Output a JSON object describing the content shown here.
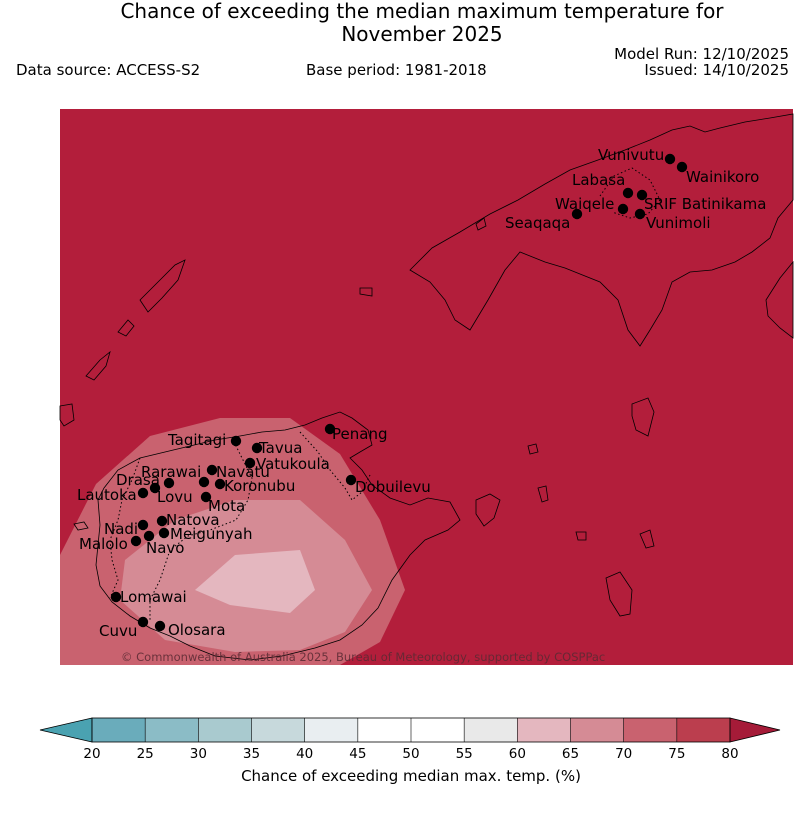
{
  "header": {
    "title_line1": "Chance of exceeding the median maximum temperature for",
    "title_line2": "November 2025",
    "data_source": "Data source: ACCESS-S2",
    "base_period": "Base period: 1981-2018",
    "model_run": "Model Run: 12/10/2025",
    "issued": "Issued: 14/10/2025"
  },
  "map": {
    "background_color": "#b31e3b",
    "copyright": "© Commonwealth of Australia 2025, Bureau of Meteorology, supported by COSPPac",
    "sites": [
      {
        "name": "Vunivutu"
      },
      {
        "name": "Wainikoro"
      },
      {
        "name": "Labasa"
      },
      {
        "name": "SRIF Batinikama"
      },
      {
        "name": "Waiqele"
      },
      {
        "name": "Seaqaqa"
      },
      {
        "name": "Vunimoli"
      },
      {
        "name": "Penang"
      },
      {
        "name": "Tagitagi"
      },
      {
        "name": "Tavua"
      },
      {
        "name": "Vatukoula"
      },
      {
        "name": "Rarawai"
      },
      {
        "name": "Navatu"
      },
      {
        "name": "Drasa"
      },
      {
        "name": "Koronubu"
      },
      {
        "name": "Lautoka"
      },
      {
        "name": "Lovu"
      },
      {
        "name": "Mota"
      },
      {
        "name": "Dobuilevu"
      },
      {
        "name": "Natova"
      },
      {
        "name": "Nadi"
      },
      {
        "name": "Meigunyah"
      },
      {
        "name": "Malolo"
      },
      {
        "name": "Navo"
      },
      {
        "name": "Lomawai"
      },
      {
        "name": "Cuvu"
      },
      {
        "name": "Olosara"
      }
    ]
  },
  "colorbar": {
    "title": "Chance of exceeding median max. temp. (%)",
    "ticks": [
      "20",
      "25",
      "30",
      "35",
      "40",
      "45",
      "50",
      "55",
      "60",
      "65",
      "70",
      "75",
      "80"
    ],
    "colors": [
      "#6aacbb",
      "#8bbcc6",
      "#a9cacf",
      "#c7d9dc",
      "#e9eef1",
      "#ffffff",
      "#ffffff",
      "#e9e9e9",
      "#e4b7bf",
      "#d58b95",
      "#c9626f",
      "#bb3e4e"
    ],
    "under_color": "#4aa2b1",
    "over_color": "#a51b38"
  }
}
